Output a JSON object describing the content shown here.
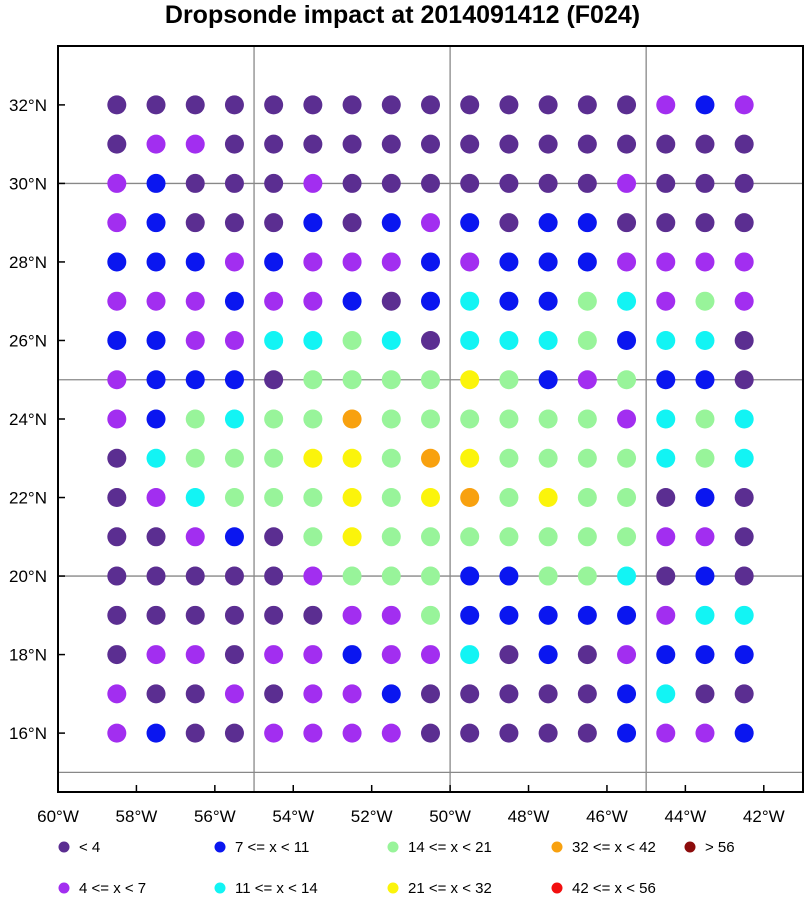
{
  "chart_data": {
    "type": "scatter",
    "title": "Dropsonde impact at 2014091412 (F024)",
    "xlim": [
      -60,
      -41
    ],
    "ylim": [
      14.5,
      33.5
    ],
    "grid": true,
    "x_ticks": [
      -60,
      -58,
      -56,
      -54,
      -52,
      -50,
      -48,
      -46,
      -44,
      -42
    ],
    "x_tick_labels": [
      "60°W",
      "58°W",
      "56°W",
      "54°W",
      "52°W",
      "50°W",
      "48°W",
      "46°W",
      "44°W",
      "42°W"
    ],
    "y_ticks": [
      16,
      18,
      20,
      22,
      24,
      26,
      28,
      30,
      32
    ],
    "y_tick_labels": [
      "16°N",
      "18°N",
      "20°N",
      "22°N",
      "24°N",
      "26°N",
      "28°N",
      "30°N",
      "32°N"
    ],
    "grid_x": [
      -55,
      -50,
      -45
    ],
    "grid_y": [
      15,
      20,
      25,
      30
    ],
    "x": [
      -58.5,
      -57.5,
      -56.5,
      -55.5,
      -54.5,
      -53.5,
      -52.5,
      -51.5,
      -50.5,
      -49.5,
      -48.5,
      -47.5,
      -46.5,
      -45.5,
      -44.5,
      -43.5,
      -42.5
    ],
    "y": [
      32,
      31,
      30,
      29,
      28,
      27,
      26,
      25,
      24,
      23,
      22,
      21,
      20,
      19,
      18,
      17,
      16
    ],
    "class_grid": [
      "00000000000000121",
      "01100000000000000",
      "12000100000001000",
      "12000202120220000",
      "22212111212221111",
      "11121120232243141",
      "22113343033342330",
      "12220444454214220",
      "12434464444441343",
      "03444554654444343",
      "01344454564544020",
      "00120454444444110",
      "00000144422443020",
      "00000011422222133",
      "01101121130201222",
      "10010112000002300",
      "12001111000002112"
    ],
    "legend": [
      {
        "label": "<  4",
        "color": "#5b2e91"
      },
      {
        "label": "4 <= x <  7",
        "color": "#a22ef0"
      },
      {
        "label": "7 <= x < 11",
        "color": "#0a16f0"
      },
      {
        "label": "11 <= x < 14",
        "color": "#12f4f4"
      },
      {
        "label": "14 <= x < 21",
        "color": "#98f49a"
      },
      {
        "label": "21 <= x < 32",
        "color": "#fbf40b"
      },
      {
        "label": "32 <= x < 42",
        "color": "#f8a10f"
      },
      {
        "label": "42 <= x < 56",
        "color": "#f20f0f"
      },
      {
        "label": "> 56",
        "color": "#8c0c0c"
      }
    ]
  }
}
